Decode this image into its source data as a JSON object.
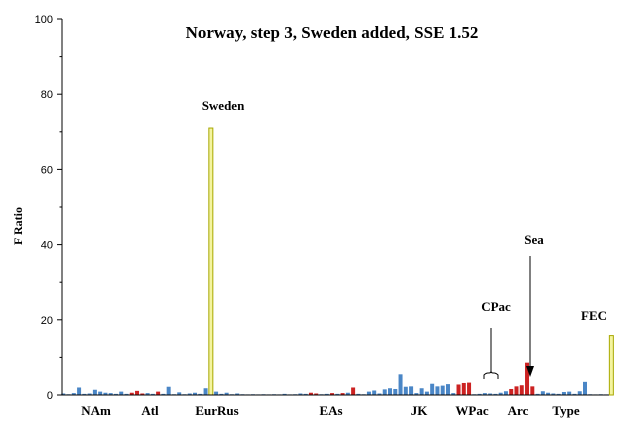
{
  "chart_data": {
    "type": "bar",
    "title": "Norway, step 3, Sweden added, SSE 1.52",
    "ylabel": "F Ratio",
    "xlabel": "",
    "ylim": [
      0,
      100
    ],
    "yticks": [
      0,
      20,
      40,
      60,
      80,
      100
    ],
    "grid": false,
    "legend": "none",
    "colors": {
      "blue": "#4a86c6",
      "red": "#cc2222",
      "yellow": "#f4f4a0",
      "yellow_edge": "#a8a800",
      "axis": "#000000"
    },
    "group_labels": [
      "NAm",
      "Atl",
      "EurRus",
      "EAs",
      "JK",
      "WPac",
      "CPac",
      "Arc",
      "Sea",
      "Type",
      "FEC"
    ],
    "annotations": [
      "Sweden",
      "CPac",
      "Sea",
      "FEC"
    ],
    "bars": [
      {
        "x": 1,
        "y": 0.4,
        "c": "blue"
      },
      {
        "x": 2,
        "y": 0.2,
        "c": "blue"
      },
      {
        "x": 3,
        "y": 0.5,
        "c": "blue"
      },
      {
        "x": 4,
        "y": 2.0,
        "c": "blue"
      },
      {
        "x": 5,
        "y": 0.3,
        "c": "blue"
      },
      {
        "x": 6,
        "y": 0.4,
        "c": "blue"
      },
      {
        "x": 7,
        "y": 1.4,
        "c": "blue"
      },
      {
        "x": 8,
        "y": 0.9,
        "c": "blue"
      },
      {
        "x": 9,
        "y": 0.6,
        "c": "blue"
      },
      {
        "x": 10,
        "y": 0.5,
        "c": "blue"
      },
      {
        "x": 11,
        "y": 0.3,
        "c": "blue"
      },
      {
        "x": 12,
        "y": 0.9,
        "c": "blue"
      },
      {
        "x": 13,
        "y": 0.3,
        "c": "blue"
      },
      {
        "x": 14,
        "y": 0.6,
        "c": "red"
      },
      {
        "x": 15,
        "y": 1.1,
        "c": "red"
      },
      {
        "x": 16,
        "y": 0.4,
        "c": "red"
      },
      {
        "x": 17,
        "y": 0.5,
        "c": "blue"
      },
      {
        "x": 18,
        "y": 0.3,
        "c": "blue"
      },
      {
        "x": 19,
        "y": 0.9,
        "c": "red"
      },
      {
        "x": 20,
        "y": 0.3,
        "c": "blue"
      },
      {
        "x": 21,
        "y": 2.2,
        "c": "blue"
      },
      {
        "x": 22,
        "y": 0.2,
        "c": "blue"
      },
      {
        "x": 23,
        "y": 0.7,
        "c": "blue"
      },
      {
        "x": 24,
        "y": 0.2,
        "c": "blue"
      },
      {
        "x": 25,
        "y": 0.4,
        "c": "blue"
      },
      {
        "x": 26,
        "y": 0.6,
        "c": "blue"
      },
      {
        "x": 27,
        "y": 0.3,
        "c": "blue"
      },
      {
        "x": 28,
        "y": 1.8,
        "c": "blue"
      },
      {
        "x": 29,
        "y": 71.0,
        "c": "yellow"
      },
      {
        "x": 30,
        "y": 0.9,
        "c": "blue"
      },
      {
        "x": 31,
        "y": 0.3,
        "c": "blue"
      },
      {
        "x": 32,
        "y": 0.6,
        "c": "blue"
      },
      {
        "x": 33,
        "y": 0.2,
        "c": "blue"
      },
      {
        "x": 34,
        "y": 0.4,
        "c": "blue"
      },
      {
        "x": 35,
        "y": 0.2,
        "c": "blue"
      },
      {
        "x": 36,
        "y": 0.1,
        "c": "blue"
      },
      {
        "x": 37,
        "y": 0.2,
        "c": "blue"
      },
      {
        "x": 38,
        "y": 0.1,
        "c": "blue"
      },
      {
        "x": 39,
        "y": 0.2,
        "c": "blue"
      },
      {
        "x": 40,
        "y": 0.1,
        "c": "blue"
      },
      {
        "x": 41,
        "y": 0.2,
        "c": "blue"
      },
      {
        "x": 42,
        "y": 0.1,
        "c": "blue"
      },
      {
        "x": 43,
        "y": 0.3,
        "c": "blue"
      },
      {
        "x": 44,
        "y": 0.1,
        "c": "blue"
      },
      {
        "x": 45,
        "y": 0.2,
        "c": "blue"
      },
      {
        "x": 46,
        "y": 0.4,
        "c": "blue"
      },
      {
        "x": 47,
        "y": 0.3,
        "c": "blue"
      },
      {
        "x": 48,
        "y": 0.6,
        "c": "red"
      },
      {
        "x": 49,
        "y": 0.4,
        "c": "red"
      },
      {
        "x": 50,
        "y": 0.2,
        "c": "blue"
      },
      {
        "x": 51,
        "y": 0.3,
        "c": "blue"
      },
      {
        "x": 52,
        "y": 0.5,
        "c": "red"
      },
      {
        "x": 53,
        "y": 0.3,
        "c": "blue"
      },
      {
        "x": 54,
        "y": 0.5,
        "c": "red"
      },
      {
        "x": 55,
        "y": 0.6,
        "c": "blue"
      },
      {
        "x": 56,
        "y": 2.0,
        "c": "red"
      },
      {
        "x": 57,
        "y": 0.3,
        "c": "blue"
      },
      {
        "x": 58,
        "y": 0.2,
        "c": "blue"
      },
      {
        "x": 59,
        "y": 0.9,
        "c": "blue"
      },
      {
        "x": 60,
        "y": 1.2,
        "c": "blue"
      },
      {
        "x": 61,
        "y": 0.4,
        "c": "blue"
      },
      {
        "x": 62,
        "y": 1.5,
        "c": "blue"
      },
      {
        "x": 63,
        "y": 1.8,
        "c": "blue"
      },
      {
        "x": 64,
        "y": 1.6,
        "c": "blue"
      },
      {
        "x": 65,
        "y": 5.5,
        "c": "blue"
      },
      {
        "x": 66,
        "y": 2.2,
        "c": "blue"
      },
      {
        "x": 67,
        "y": 2.3,
        "c": "blue"
      },
      {
        "x": 68,
        "y": 0.5,
        "c": "blue"
      },
      {
        "x": 69,
        "y": 1.8,
        "c": "blue"
      },
      {
        "x": 70,
        "y": 0.9,
        "c": "blue"
      },
      {
        "x": 71,
        "y": 3.0,
        "c": "blue"
      },
      {
        "x": 72,
        "y": 2.3,
        "c": "blue"
      },
      {
        "x": 73,
        "y": 2.5,
        "c": "blue"
      },
      {
        "x": 74,
        "y": 2.9,
        "c": "blue"
      },
      {
        "x": 75,
        "y": 0.5,
        "c": "blue"
      },
      {
        "x": 76,
        "y": 2.8,
        "c": "red"
      },
      {
        "x": 77,
        "y": 3.2,
        "c": "red"
      },
      {
        "x": 78,
        "y": 3.3,
        "c": "red"
      },
      {
        "x": 79,
        "y": 0.2,
        "c": "blue"
      },
      {
        "x": 80,
        "y": 0.3,
        "c": "blue"
      },
      {
        "x": 81,
        "y": 0.5,
        "c": "blue"
      },
      {
        "x": 82,
        "y": 0.4,
        "c": "blue"
      },
      {
        "x": 83,
        "y": 0.3,
        "c": "blue"
      },
      {
        "x": 84,
        "y": 0.6,
        "c": "blue"
      },
      {
        "x": 85,
        "y": 1.0,
        "c": "blue"
      },
      {
        "x": 86,
        "y": 1.6,
        "c": "red"
      },
      {
        "x": 87,
        "y": 2.3,
        "c": "red"
      },
      {
        "x": 88,
        "y": 2.6,
        "c": "red"
      },
      {
        "x": 89,
        "y": 8.6,
        "c": "red"
      },
      {
        "x": 90,
        "y": 2.3,
        "c": "red"
      },
      {
        "x": 91,
        "y": 0.3,
        "c": "blue"
      },
      {
        "x": 92,
        "y": 1.0,
        "c": "blue"
      },
      {
        "x": 93,
        "y": 0.6,
        "c": "blue"
      },
      {
        "x": 94,
        "y": 0.4,
        "c": "blue"
      },
      {
        "x": 95,
        "y": 0.3,
        "c": "blue"
      },
      {
        "x": 96,
        "y": 0.8,
        "c": "blue"
      },
      {
        "x": 97,
        "y": 0.9,
        "c": "blue"
      },
      {
        "x": 98,
        "y": 0.3,
        "c": "blue"
      },
      {
        "x": 99,
        "y": 1.0,
        "c": "blue"
      },
      {
        "x": 100,
        "y": 3.5,
        "c": "blue"
      },
      {
        "x": 101,
        "y": 0.2,
        "c": "blue"
      },
      {
        "x": 102,
        "y": 0.1,
        "c": "blue"
      },
      {
        "x": 103,
        "y": 0.2,
        "c": "blue"
      },
      {
        "x": 104,
        "y": 0.1,
        "c": "blue"
      },
      {
        "x": 105,
        "y": 15.8,
        "c": "yellow"
      }
    ]
  }
}
